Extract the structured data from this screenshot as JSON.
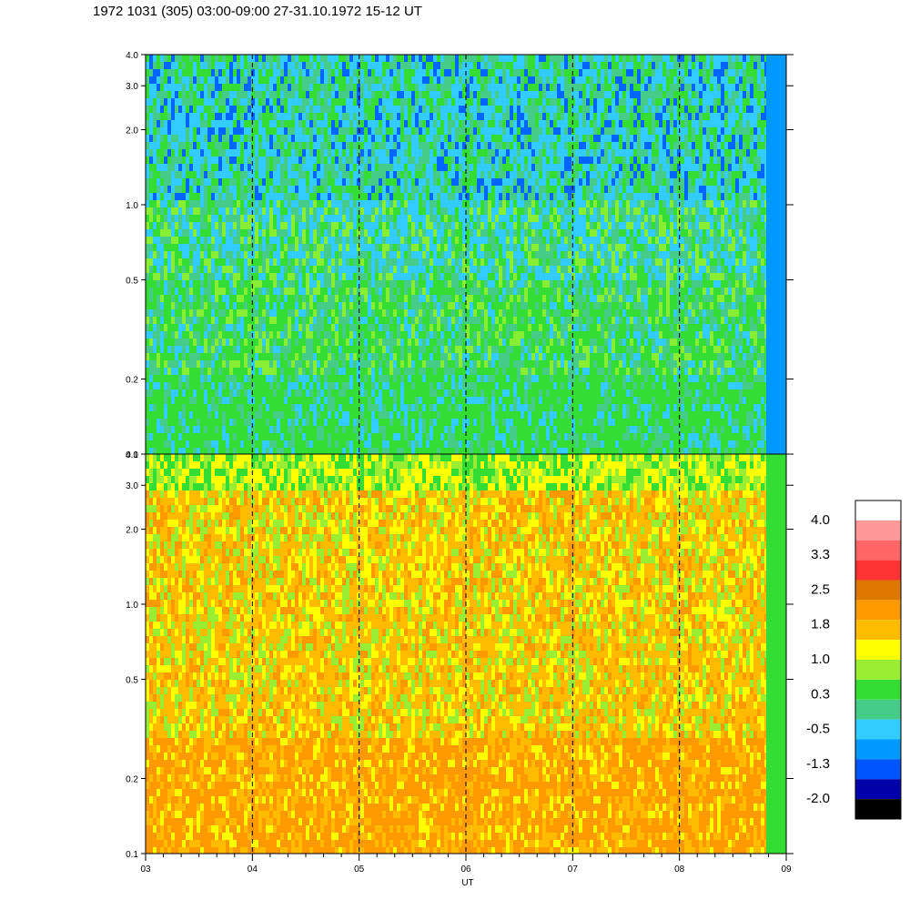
{
  "title": "1972 1031 (305) 03:00-09:00 27-31.10.1972  15-12 UT",
  "chart_data": {
    "type": "heatmap",
    "x_ticks": [
      "03",
      "04",
      "05",
      "06",
      "07",
      "08",
      "09"
    ],
    "x_range": [
      3,
      9
    ],
    "xlabel": "UT",
    "panels": [
      {
        "id": "upper",
        "y_ticks": [
          "0.1",
          "0.2",
          "0.5",
          "1.0",
          "2.0",
          "3.0",
          "4.0"
        ],
        "y_range": [
          0.1,
          4.0
        ],
        "y_scale": "log",
        "dominant_colors": [
          "#33ccff",
          "#33dd33",
          "#88ee33",
          "#0066ff",
          "#44cc88"
        ]
      },
      {
        "id": "lower",
        "y_ticks": [
          "0.1",
          "0.2",
          "0.5",
          "1.0",
          "2.0",
          "3.0",
          "4.0"
        ],
        "y_range": [
          0.1,
          4.0
        ],
        "y_scale": "log",
        "dominant_colors": [
          "#ffbb00",
          "#ff9900",
          "#ffff00",
          "#99ee33",
          "#33dd33"
        ]
      }
    ],
    "colorbar": {
      "labels": [
        "4.0",
        "3.3",
        "2.5",
        "1.8",
        "1.0",
        "0.3",
        "-0.5",
        "-1.3",
        "-2.0"
      ],
      "colors": [
        "#ffffff",
        "#ff9999",
        "#ff6666",
        "#ff3333",
        "#dd7700",
        "#ff9900",
        "#ffbb00",
        "#ffff00",
        "#99ee33",
        "#33dd33",
        "#44cc88",
        "#33ccff",
        "#0099ff",
        "#0055ff",
        "#0000aa",
        "#000000"
      ]
    },
    "grid": "vertical dashed lines at hour ticks"
  }
}
